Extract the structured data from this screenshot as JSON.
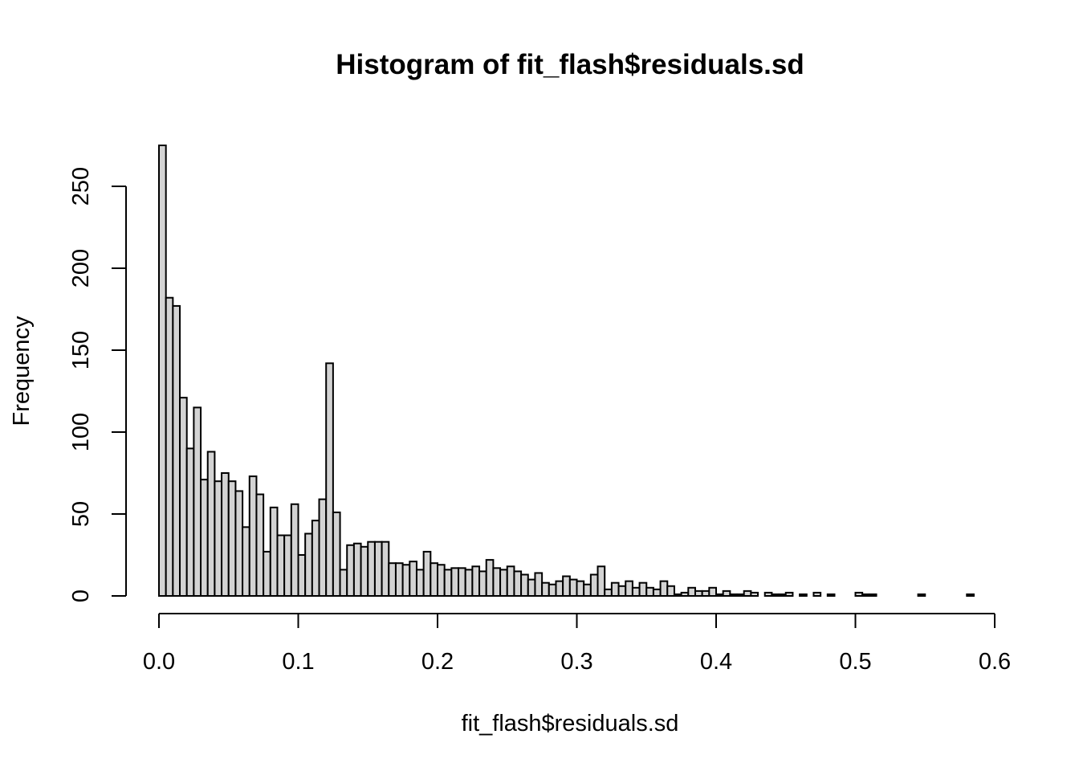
{
  "chart_data": {
    "type": "bar",
    "title": "Histogram of fit_flash$residuals.sd",
    "xlabel": "fit_flash$residuals.sd",
    "ylabel": "Frequency",
    "bin_width": 0.005,
    "x_start": 0.0,
    "xlim": [
      0,
      0.6
    ],
    "ylim": [
      0,
      275
    ],
    "x_ticks": [
      0.0,
      0.1,
      0.2,
      0.3,
      0.4,
      0.5,
      0.6
    ],
    "x_tick_labels": [
      "0.0",
      "0.1",
      "0.2",
      "0.3",
      "0.4",
      "0.5",
      "0.6"
    ],
    "y_ticks": [
      0,
      50,
      100,
      150,
      200,
      250
    ],
    "y_tick_labels": [
      "0",
      "50",
      "100",
      "150",
      "200",
      "250"
    ],
    "values": [
      275,
      182,
      177,
      121,
      90,
      115,
      71,
      88,
      70,
      75,
      70,
      64,
      42,
      73,
      62,
      27,
      54,
      37,
      37,
      56,
      25,
      38,
      46,
      59,
      142,
      51,
      16,
      31,
      32,
      30,
      33,
      33,
      33,
      20,
      20,
      19,
      21,
      16,
      27,
      20,
      19,
      16,
      17,
      17,
      16,
      18,
      15,
      22,
      17,
      16,
      18,
      15,
      13,
      10,
      14,
      8,
      7,
      9,
      12,
      10,
      9,
      7,
      13,
      18,
      4,
      8,
      6,
      9,
      5,
      8,
      5,
      4,
      9,
      6,
      1,
      2,
      5,
      3,
      3,
      5,
      1,
      3,
      1,
      1,
      3,
      2,
      0,
      2,
      1,
      1,
      2,
      0,
      1,
      0,
      2,
      0,
      1,
      0,
      0,
      0,
      2,
      1,
      1,
      0,
      0,
      0,
      0,
      0,
      0,
      1,
      0,
      0,
      0,
      0,
      0,
      0,
      1,
      0
    ]
  }
}
